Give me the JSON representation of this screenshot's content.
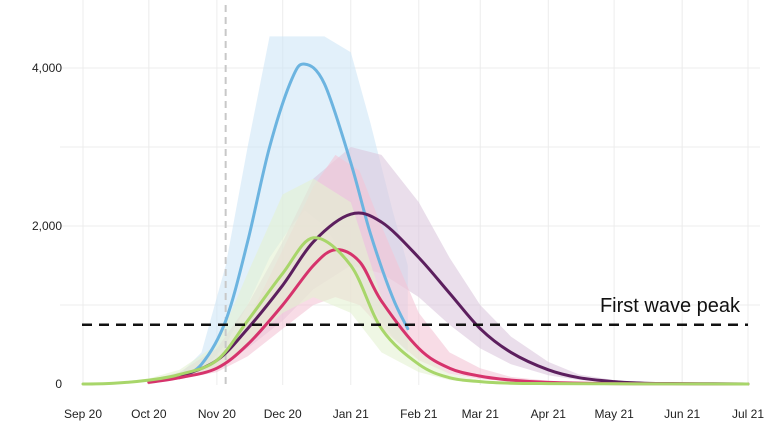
{
  "chart_data": {
    "type": "line",
    "title": "",
    "xlabel": "",
    "ylabel": "",
    "ylim": [
      0,
      4400
    ],
    "xlim": [
      "2020-09-01",
      "2021-07-01"
    ],
    "grid": true,
    "y_ticks": [
      {
        "value": 0,
        "label": "0"
      },
      {
        "value": 2000,
        "label": "2,000"
      },
      {
        "value": 4000,
        "label": "4,000"
      }
    ],
    "x_ticks": [
      {
        "date": "2020-09-01",
        "label": "Sep 20"
      },
      {
        "date": "2020-10-01",
        "label": "Oct 20"
      },
      {
        "date": "2020-11-01",
        "label": "Nov 20"
      },
      {
        "date": "2020-12-01",
        "label": "Dec 20"
      },
      {
        "date": "2021-01-01",
        "label": "Jan 21"
      },
      {
        "date": "2021-02-01",
        "label": "Feb 21"
      },
      {
        "date": "2021-03-01",
        "label": "Mar 21"
      },
      {
        "date": "2021-04-01",
        "label": "Apr 21"
      },
      {
        "date": "2021-05-01",
        "label": "May 21"
      },
      {
        "date": "2021-06-01",
        "label": "Jun 21"
      },
      {
        "date": "2021-07-01",
        "label": "Jul 21"
      }
    ],
    "vertical_marker": {
      "date": "2020-11-05"
    },
    "reference_line": {
      "value": 750,
      "label": "First wave peak"
    },
    "series": [
      {
        "color": "#6cb4e0",
        "band_color": "#cfe6f7",
        "x": [
          "2020-10-15",
          "2020-10-25",
          "2020-11-05",
          "2020-11-15",
          "2020-11-25",
          "2020-12-05",
          "2020-12-11",
          "2020-12-20",
          "2021-01-01",
          "2021-01-10",
          "2021-01-20",
          "2021-01-27"
        ],
        "y": [
          80,
          250,
          800,
          1800,
          3000,
          3850,
          4050,
          3800,
          2800,
          1900,
          1100,
          700
        ],
        "lower": [
          60,
          150,
          500,
          1000,
          1600,
          2000,
          2200,
          2000,
          1500,
          1000,
          600,
          400
        ],
        "upper": [
          120,
          400,
          1500,
          3000,
          4400,
          4400,
          4400,
          4400,
          4200,
          3300,
          2200,
          1500
        ]
      },
      {
        "color": "#5c1f5e",
        "band_color": "#dcc8dd",
        "x": [
          "2020-10-01",
          "2020-10-15",
          "2020-11-01",
          "2020-11-15",
          "2020-12-01",
          "2020-12-15",
          "2021-01-01",
          "2021-01-15",
          "2021-02-01",
          "2021-02-15",
          "2021-03-01",
          "2021-03-15",
          "2021-04-01",
          "2021-04-15",
          "2021-05-01",
          "2021-05-15",
          "2021-06-01",
          "2021-06-15",
          "2021-07-01"
        ],
        "y": [
          30,
          100,
          300,
          700,
          1250,
          1800,
          2150,
          2050,
          1600,
          1150,
          700,
          400,
          180,
          80,
          30,
          10,
          5,
          2,
          0
        ],
        "lower": [
          20,
          70,
          200,
          450,
          800,
          1200,
          1500,
          1400,
          1100,
          750,
          450,
          250,
          110,
          50,
          20,
          6,
          3,
          1,
          0
        ],
        "upper": [
          50,
          150,
          450,
          1000,
          1800,
          2600,
          3000,
          2900,
          2300,
          1600,
          1000,
          600,
          280,
          120,
          50,
          15,
          6,
          3,
          0
        ]
      },
      {
        "color": "#d6336c",
        "band_color": "#f3c4d6",
        "x": [
          "2020-10-01",
          "2020-10-15",
          "2020-11-01",
          "2020-11-15",
          "2020-12-01",
          "2020-12-15",
          "2020-12-25",
          "2021-01-05",
          "2021-01-15",
          "2021-02-01",
          "2021-02-15",
          "2021-03-01",
          "2021-03-15",
          "2021-04-01",
          "2021-05-01",
          "2021-06-01",
          "2021-07-01"
        ],
        "y": [
          20,
          80,
          200,
          500,
          1000,
          1500,
          1700,
          1550,
          1050,
          450,
          200,
          100,
          50,
          20,
          5,
          2,
          0
        ],
        "lower": [
          15,
          60,
          150,
          350,
          700,
          1000,
          1100,
          1000,
          700,
          300,
          130,
          60,
          30,
          10,
          3,
          1,
          0
        ],
        "upper": [
          30,
          110,
          300,
          800,
          1700,
          2500,
          2900,
          2700,
          2000,
          900,
          400,
          200,
          90,
          40,
          10,
          4,
          0
        ]
      },
      {
        "color": "#a8d66a",
        "band_color": "#e4f2d2",
        "x": [
          "2020-09-01",
          "2020-09-15",
          "2020-10-01",
          "2020-10-15",
          "2020-11-01",
          "2020-11-15",
          "2020-12-01",
          "2020-12-15",
          "2021-01-01",
          "2021-01-15",
          "2021-02-01",
          "2021-02-15",
          "2021-03-01",
          "2021-03-15",
          "2021-04-01",
          "2021-05-01",
          "2021-06-01",
          "2021-07-01"
        ],
        "y": [
          0,
          10,
          50,
          120,
          300,
          800,
          1400,
          1850,
          1500,
          700,
          250,
          80,
          30,
          10,
          5,
          2,
          1,
          0
        ],
        "lower": [
          0,
          5,
          30,
          80,
          200,
          500,
          900,
          1100,
          900,
          400,
          150,
          50,
          20,
          6,
          3,
          1,
          0,
          0
        ],
        "upper": [
          0,
          15,
          70,
          180,
          500,
          1400,
          2400,
          2600,
          2300,
          1100,
          400,
          130,
          50,
          15,
          8,
          3,
          1,
          0
        ]
      }
    ]
  }
}
